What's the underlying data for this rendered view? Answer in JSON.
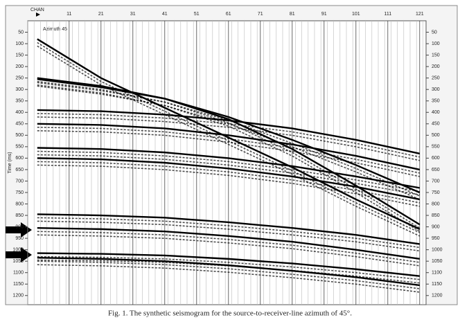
{
  "chart_data": {
    "type": "line",
    "x_label": "CHAN",
    "y_label": "Time (ms)",
    "annotation": "Azimuth 45",
    "caption": "Fig. 1. The synthetic seismogram for the source-to-receiver-line azimuth of 45°.",
    "x": [
      1,
      21,
      41,
      61,
      81,
      101,
      121
    ],
    "series": [
      {
        "color": "#000000",
        "values": [
          80,
          250,
          380,
          510,
          640,
          780,
          910
        ]
      },
      {
        "color": "#000000",
        "values": [
          250,
          285,
          340,
          430,
          560,
          720,
          890
        ]
      },
      {
        "color": "#000000",
        "values": [
          255,
          290,
          340,
          420,
          520,
          630,
          750
        ]
      },
      {
        "color": "#000000",
        "values": [
          390,
          395,
          410,
          435,
          470,
          520,
          580
        ]
      },
      {
        "color": "#000000",
        "values": [
          450,
          455,
          470,
          500,
          540,
          590,
          650
        ]
      },
      {
        "color": "#000000",
        "values": [
          555,
          560,
          575,
          600,
          635,
          680,
          730
        ]
      },
      {
        "color": "#000000",
        "values": [
          600,
          605,
          620,
          645,
          680,
          725,
          780
        ]
      },
      {
        "color": "#000000",
        "values": [
          845,
          850,
          860,
          880,
          905,
          935,
          975
        ]
      },
      {
        "color": "#000000",
        "values": [
          905,
          910,
          920,
          940,
          965,
          1000,
          1040
        ]
      },
      {
        "color": "#000000",
        "values": [
          1015,
          1018,
          1025,
          1040,
          1060,
          1085,
          1115
        ]
      },
      {
        "color": "#000000",
        "values": [
          1035,
          1040,
          1050,
          1068,
          1092,
          1120,
          1155
        ]
      }
    ],
    "xlim": [
      -2,
      123
    ],
    "xticks": [
      11,
      21,
      31,
      41,
      51,
      61,
      71,
      81,
      91,
      101,
      111,
      121
    ],
    "ylim": [
      0,
      1240
    ],
    "yticks": [
      50,
      100,
      150,
      200,
      250,
      300,
      350,
      400,
      450,
      500,
      550,
      600,
      650,
      700,
      750,
      800,
      850,
      900,
      950,
      1000,
      1050,
      1100,
      1150,
      1200
    ],
    "y_inverted": true
  }
}
